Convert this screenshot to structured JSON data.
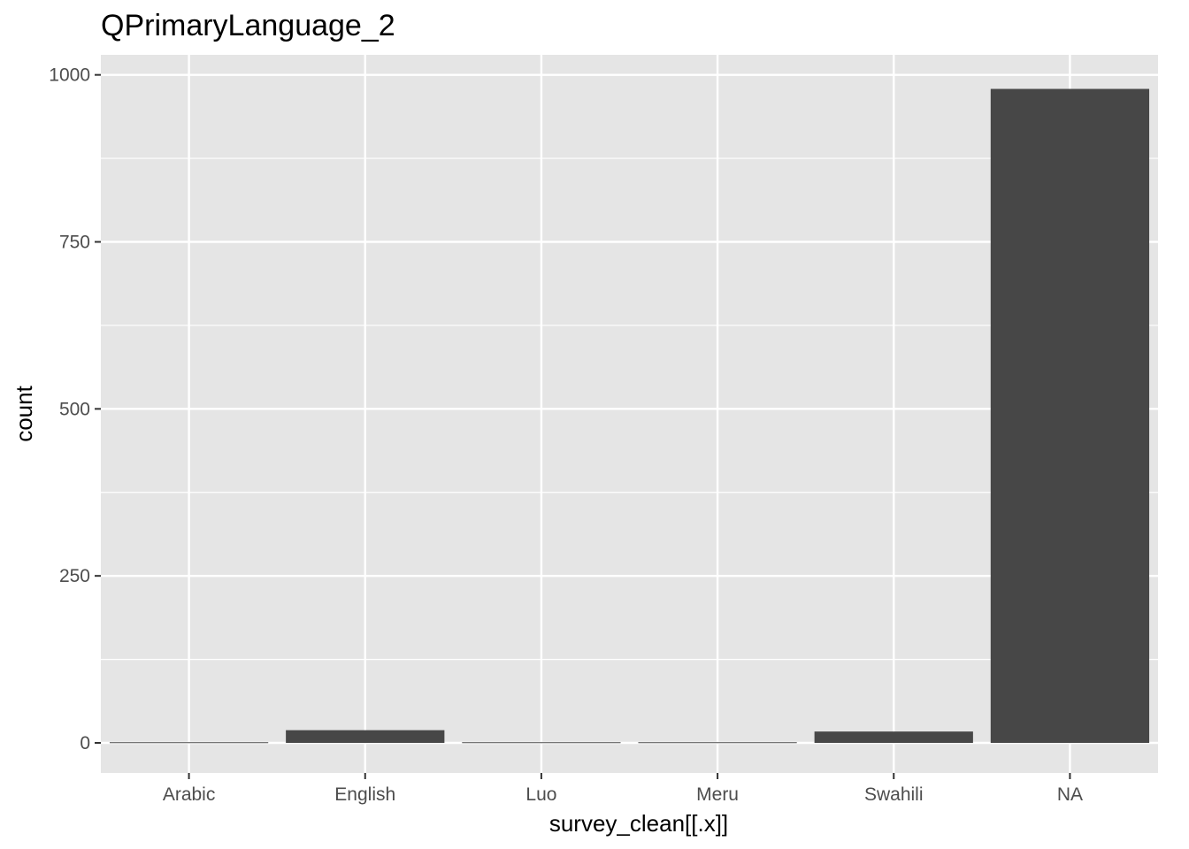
{
  "chart_data": {
    "type": "bar",
    "title": "QPrimaryLanguage_2",
    "xlabel": "survey_clean[[.x]]",
    "ylabel": "count",
    "categories": [
      "Arabic",
      "English",
      "Luo",
      "Meru",
      "Swahili",
      "NA"
    ],
    "values": [
      1,
      19,
      1,
      1,
      17,
      979
    ],
    "ylim": [
      -45,
      1030
    ],
    "yticks": [
      0,
      250,
      500,
      750,
      1000
    ],
    "yminor": [
      125,
      375,
      625,
      875
    ],
    "grid": true,
    "legend": "none",
    "colors": {
      "panel": "#e5e5e5",
      "grid": "#ffffff",
      "bar": "#474747",
      "tick": "#333333"
    }
  }
}
